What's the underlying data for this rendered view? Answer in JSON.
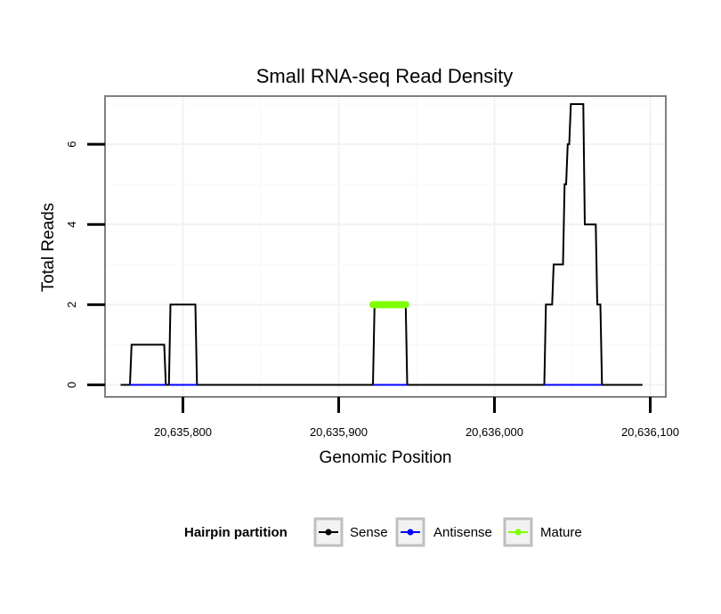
{
  "chart_data": {
    "type": "line",
    "title": "Small RNA-seq Read Density",
    "xlabel": "Genomic Position",
    "ylabel": "Total Reads",
    "xlim": [
      20635750,
      20636110
    ],
    "ylim": [
      -0.3,
      7.2
    ],
    "x_ticks": [
      20635800,
      20635900,
      20636000,
      20636100
    ],
    "x_tick_labels": [
      "20,635,800",
      "20,635,900",
      "20,636,000",
      "20,636,100"
    ],
    "y_ticks": [
      0,
      2,
      4,
      6
    ],
    "y_tick_labels": [
      "0",
      "2",
      "4",
      "6"
    ],
    "grid": true,
    "legend": {
      "title": "Hairpin partition",
      "position": "bottom",
      "entries": [
        {
          "label": "Sense",
          "color": "#000000"
        },
        {
          "label": "Antisense",
          "color": "#0000ff"
        },
        {
          "label": "Mature",
          "color": "#7fff00"
        }
      ]
    },
    "series": [
      {
        "name": "Sense",
        "color": "#000000",
        "points": [
          [
            20635760,
            0
          ],
          [
            20635766,
            0
          ],
          [
            20635767,
            1
          ],
          [
            20635788,
            1
          ],
          [
            20635789,
            0
          ],
          [
            20635791,
            0
          ],
          [
            20635792,
            2
          ],
          [
            20635808,
            2
          ],
          [
            20635809,
            0
          ],
          [
            20635922,
            0
          ],
          [
            20635923,
            2
          ],
          [
            20635943,
            2
          ],
          [
            20635944,
            0
          ],
          [
            20636032,
            0
          ],
          [
            20636033,
            2
          ],
          [
            20636037,
            2
          ],
          [
            20636038,
            3
          ],
          [
            20636044,
            3
          ],
          [
            20636045,
            5
          ],
          [
            20636046,
            5
          ],
          [
            20636047,
            6
          ],
          [
            20636048,
            6
          ],
          [
            20636049,
            7
          ],
          [
            20636057,
            7
          ],
          [
            20636058,
            4
          ],
          [
            20636065,
            4
          ],
          [
            20636066,
            2
          ],
          [
            20636068,
            2
          ],
          [
            20636069,
            0
          ],
          [
            20636095,
            0
          ]
        ]
      },
      {
        "name": "Antisense",
        "color": "#0000ff",
        "segments": [
          [
            [
              20635766,
              0
            ],
            [
              20635789,
              0
            ]
          ],
          [
            [
              20635791,
              0
            ],
            [
              20635809,
              0
            ]
          ],
          [
            [
              20635922,
              0
            ],
            [
              20635944,
              0
            ]
          ],
          [
            [
              20636032,
              0
            ],
            [
              20636069,
              0
            ]
          ]
        ]
      },
      {
        "name": "Mature",
        "color": "#7fff00",
        "segments": [
          [
            [
              20635922,
              2
            ],
            [
              20635943,
              2
            ]
          ]
        ]
      }
    ]
  }
}
